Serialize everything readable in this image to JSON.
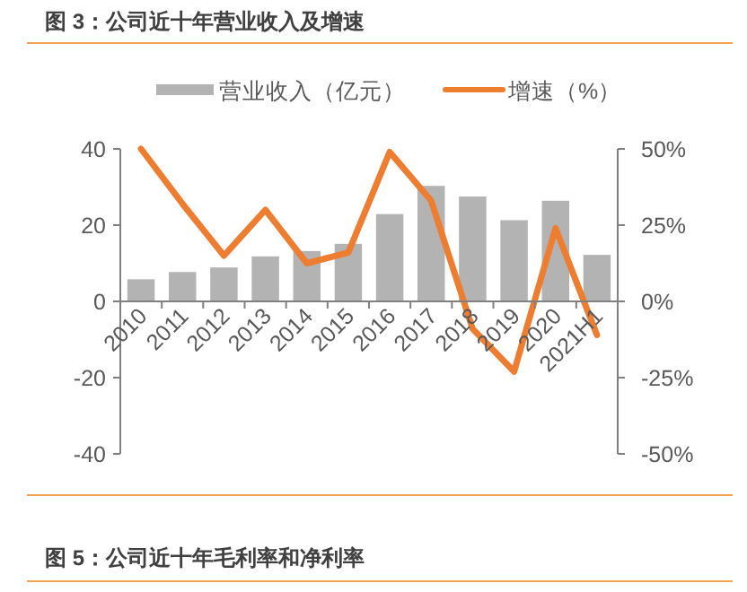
{
  "chart_data": {
    "type": "bar",
    "title": "图 3：公司近十年营业收入及增速",
    "categories": [
      "2010",
      "2011",
      "2012",
      "2013",
      "2014",
      "2015",
      "2016",
      "2017",
      "2018",
      "2019",
      "2020",
      "2021H1"
    ],
    "series": [
      {
        "name": "营业收入（亿元）",
        "color": "#b3b3b3",
        "values": [
          5.8,
          7.7,
          8.9,
          11.8,
          13.2,
          15.1,
          22.9,
          30.3,
          27.5,
          21.3,
          26.4,
          12.2
        ]
      },
      {
        "name": "增速（%）",
        "type": "line",
        "axis": "y2",
        "color": "#ed7d31",
        "values": [
          50,
          32,
          15,
          30,
          12.5,
          16,
          49,
          33,
          -9,
          -23,
          24,
          -11
        ]
      }
    ],
    "ylim": [
      -40,
      40
    ],
    "yticks": [
      -40,
      -20,
      0,
      20,
      40
    ],
    "y2lim": [
      -50,
      50
    ],
    "y2ticks": [
      {
        "value": -50,
        "label": "-50%"
      },
      {
        "value": -25,
        "label": "-25%"
      },
      {
        "value": 0,
        "label": "0%"
      },
      {
        "value": 25,
        "label": "25%"
      },
      {
        "value": 50,
        "label": "50%"
      }
    ],
    "legend": "top",
    "grid": false,
    "annotations": [
      "图 5：公司近十年毛利率和净利率"
    ]
  }
}
